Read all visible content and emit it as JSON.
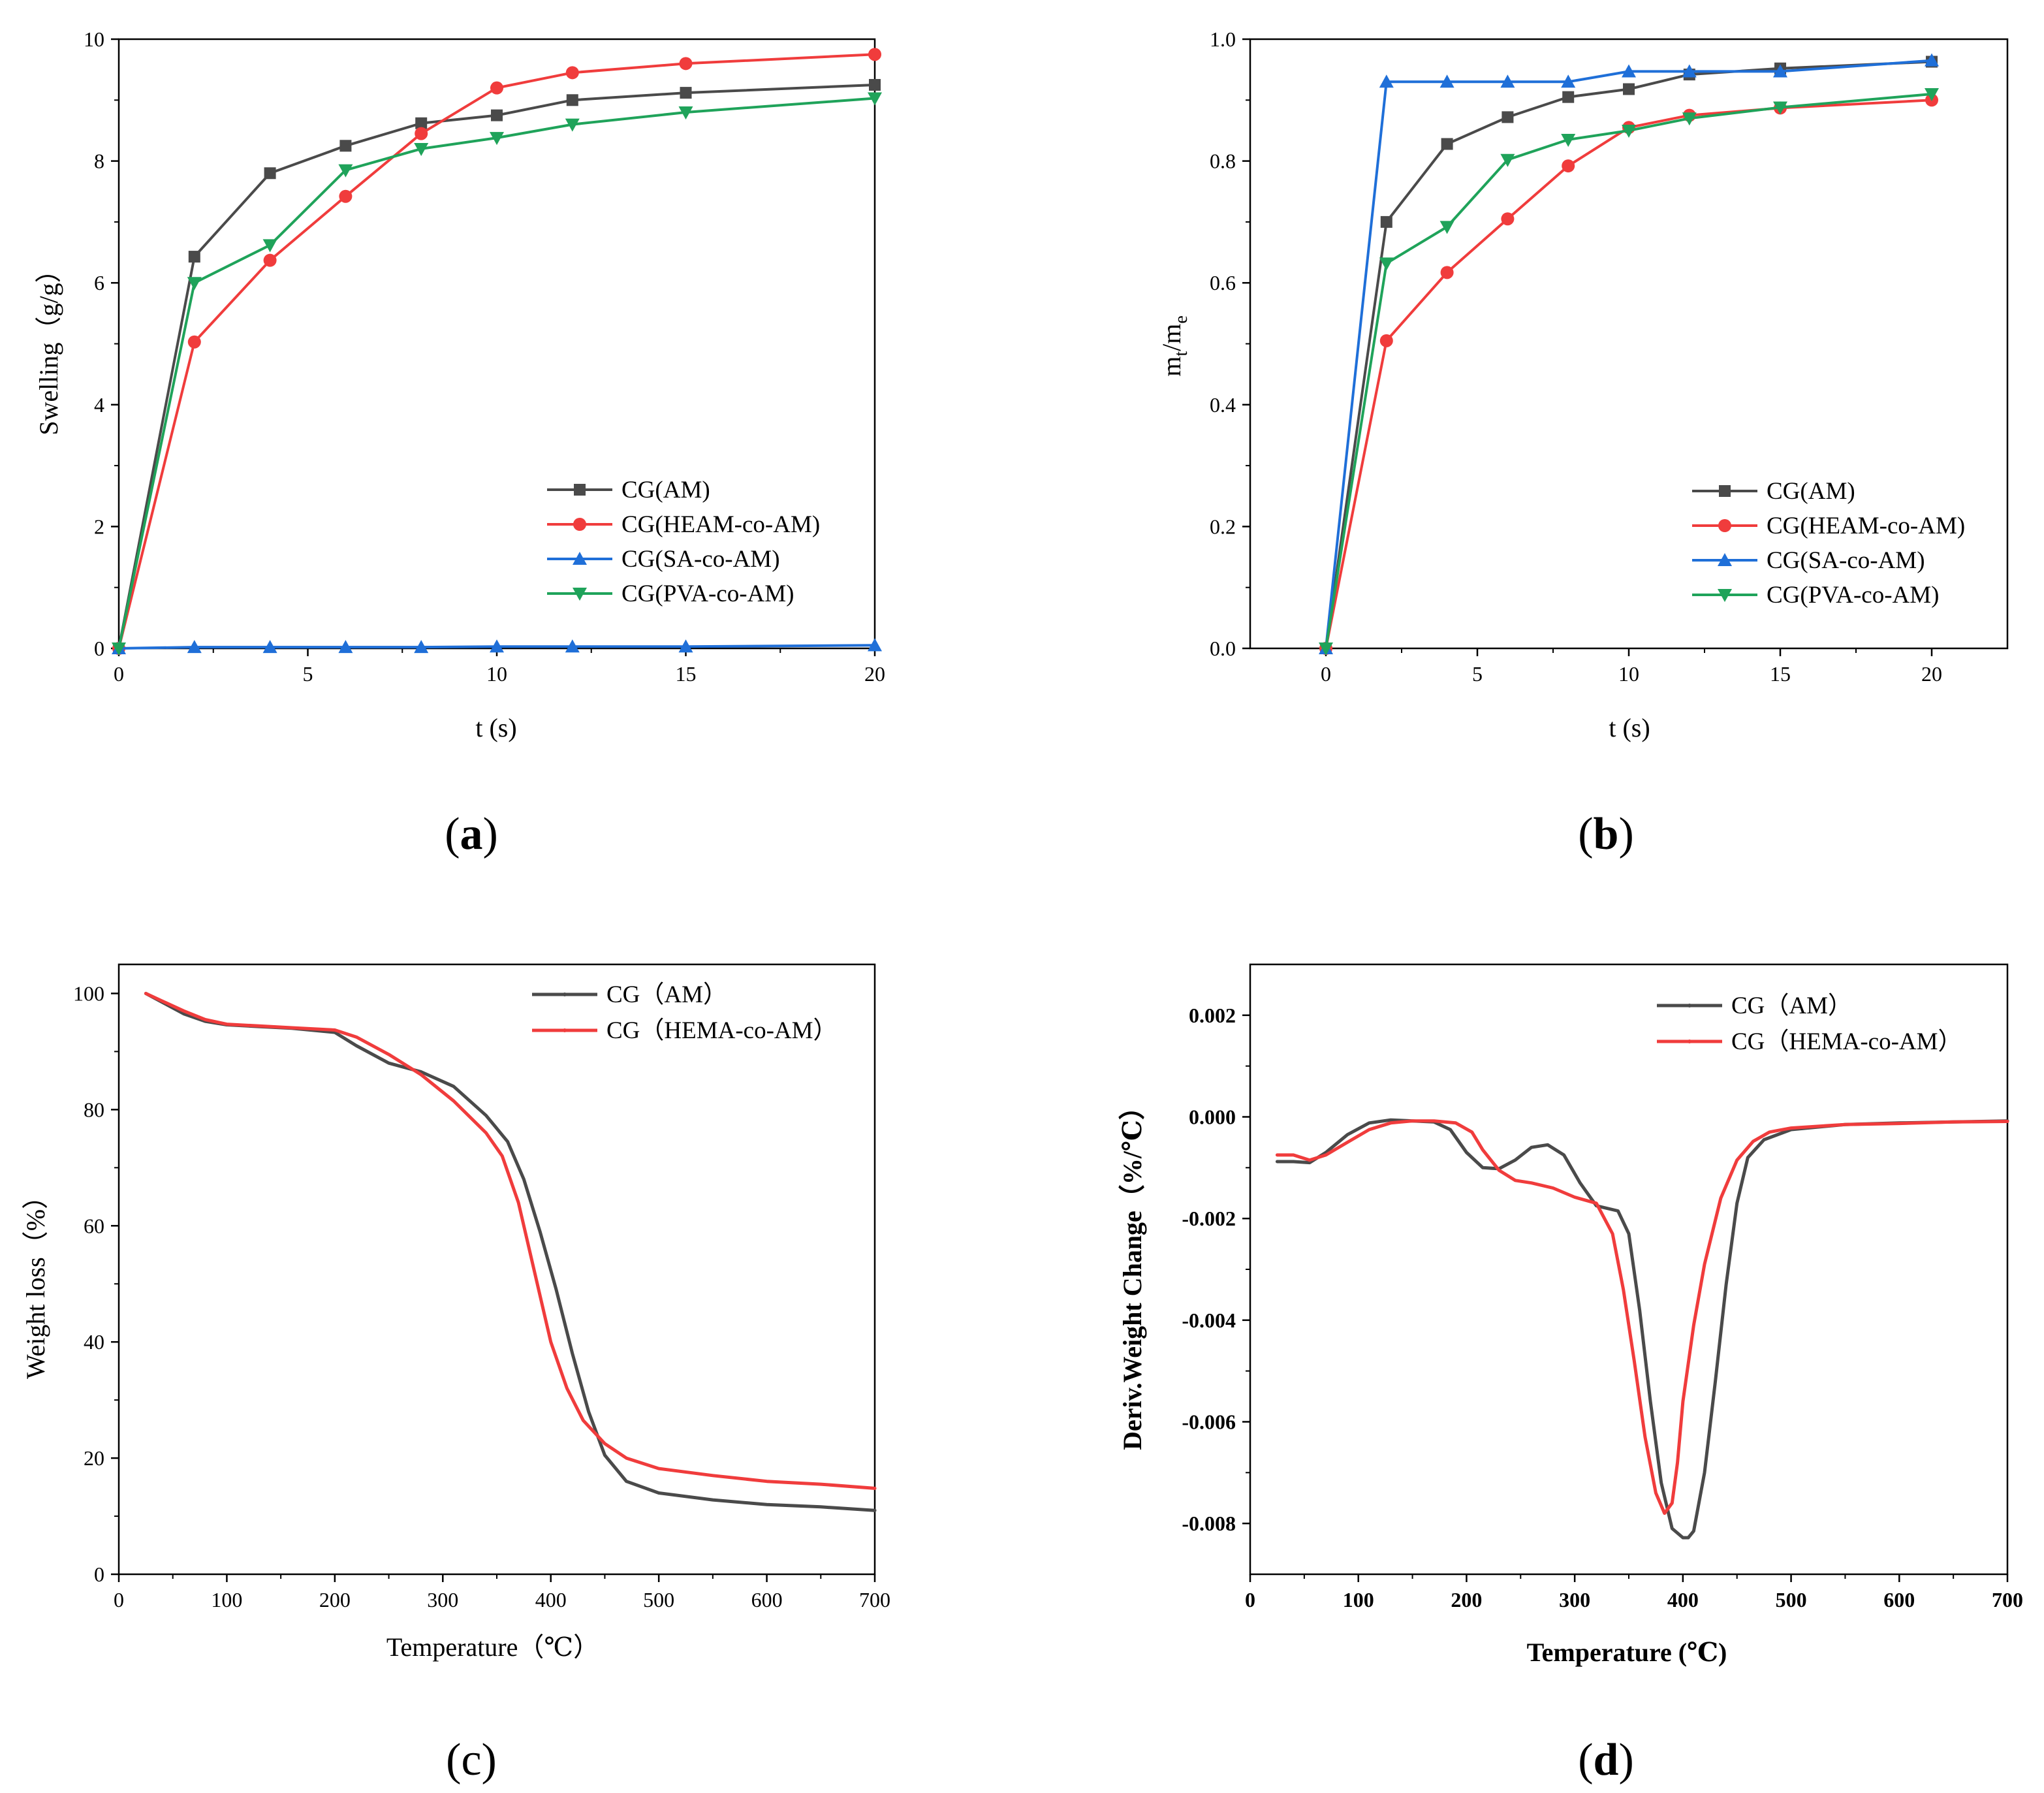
{
  "colors": {
    "gray": "#4a4a4a",
    "red": "#f03c3c",
    "blue": "#1f6fd8",
    "green": "#1fa35a"
  },
  "chart_data": [
    {
      "id": "a",
      "type": "line",
      "panel_label": "a",
      "xlabel": "t (s)",
      "ylabel": "Swelling（g/g）",
      "xlim": [
        0,
        20
      ],
      "ylim": [
        0,
        10
      ],
      "xticks": [
        0,
        5,
        10,
        15,
        20
      ],
      "yticks": [
        0,
        2,
        4,
        6,
        8,
        10
      ],
      "xtick_labels": [
        "0",
        "5",
        "10",
        "15",
        "20"
      ],
      "ytick_labels": [
        "0",
        "2",
        "4",
        "6",
        "8",
        "10"
      ],
      "legend_position": "lower-right",
      "series": [
        {
          "name": "CG(AM)",
          "color": "gray",
          "marker": "square",
          "x": [
            0,
            2,
            4,
            6,
            8,
            10,
            12,
            15,
            20
          ],
          "y": [
            0,
            6.43,
            7.8,
            8.25,
            8.62,
            8.75,
            9.0,
            9.12,
            9.25
          ]
        },
        {
          "name": "CG(HEAM-co-AM)",
          "color": "red",
          "marker": "circle",
          "x": [
            0,
            2,
            4,
            6,
            8,
            10,
            12,
            15,
            20
          ],
          "y": [
            0,
            5.03,
            6.37,
            7.42,
            8.45,
            9.2,
            9.45,
            9.6,
            9.75
          ]
        },
        {
          "name": "CG(SA-co-AM)",
          "color": "blue",
          "marker": "triangle-up",
          "x": [
            0,
            2,
            4,
            6,
            8,
            10,
            12,
            15,
            20
          ],
          "y": [
            0,
            0.02,
            0.02,
            0.02,
            0.02,
            0.03,
            0.03,
            0.03,
            0.05
          ]
        },
        {
          "name": "CG(PVA-co-AM)",
          "color": "green",
          "marker": "triangle-down",
          "x": [
            0,
            2,
            4,
            6,
            8,
            10,
            12,
            15,
            20
          ],
          "y": [
            0,
            6.0,
            6.62,
            7.85,
            8.2,
            8.38,
            8.6,
            8.8,
            9.03
          ]
        }
      ]
    },
    {
      "id": "b",
      "type": "line",
      "panel_label": "b",
      "xlabel": "t (s)",
      "ylabel_main": "m",
      "ylabel_sub1": "t",
      "ylabel_mid": "/m",
      "ylabel_sub2": "e",
      "xlim": [
        -2.5,
        22.5
      ],
      "ylim": [
        0,
        1.0
      ],
      "xticks": [
        0,
        5,
        10,
        15,
        20
      ],
      "yticks": [
        0.0,
        0.2,
        0.4,
        0.6,
        0.8,
        1.0
      ],
      "xtick_labels": [
        "0",
        "5",
        "10",
        "15",
        "20"
      ],
      "ytick_labels": [
        "0.0",
        "0.2",
        "0.4",
        "0.6",
        "0.8",
        "1.0"
      ],
      "legend_position": "lower-right",
      "series": [
        {
          "name": "CG(AM)",
          "color": "gray",
          "marker": "square",
          "x": [
            0,
            2,
            4,
            6,
            8,
            10,
            12,
            15,
            20
          ],
          "y": [
            0,
            0.7,
            0.828,
            0.872,
            0.905,
            0.918,
            0.942,
            0.952,
            0.963
          ]
        },
        {
          "name": "CG(HEAM-co-AM)",
          "color": "red",
          "marker": "circle",
          "x": [
            0,
            2,
            4,
            6,
            8,
            10,
            12,
            15,
            20
          ],
          "y": [
            0,
            0.505,
            0.617,
            0.705,
            0.792,
            0.855,
            0.875,
            0.887,
            0.9
          ]
        },
        {
          "name": "CG(SA-co-AM)",
          "color": "blue",
          "marker": "triangle-up",
          "x": [
            0,
            2,
            4,
            6,
            8,
            10,
            12,
            15,
            20
          ],
          "y": [
            0,
            0.93,
            0.93,
            0.93,
            0.93,
            0.947,
            0.947,
            0.947,
            0.965
          ]
        },
        {
          "name": "CG(PVA-co-AM)",
          "color": "green",
          "marker": "triangle-down",
          "x": [
            0,
            2,
            4,
            6,
            8,
            10,
            12,
            15,
            20
          ],
          "y": [
            0,
            0.632,
            0.692,
            0.802,
            0.835,
            0.85,
            0.87,
            0.888,
            0.91
          ]
        }
      ]
    },
    {
      "id": "c",
      "type": "line",
      "panel_label": "c",
      "xlabel": "Temperature（℃）",
      "ylabel": "Weight loss（%）",
      "xlim": [
        0,
        700
      ],
      "ylim": [
        0,
        105
      ],
      "xticks": [
        0,
        100,
        200,
        300,
        400,
        500,
        600,
        700
      ],
      "yticks": [
        0,
        20,
        40,
        60,
        80,
        100
      ],
      "xtick_labels": [
        "0",
        "100",
        "200",
        "300",
        "400",
        "500",
        "600",
        "700"
      ],
      "ytick_labels": [
        "0",
        "20",
        "40",
        "60",
        "80",
        "100"
      ],
      "legend_position": "top-right",
      "series": [
        {
          "name": "CG（AM）",
          "color": "gray",
          "x": [
            25,
            40,
            60,
            80,
            100,
            130,
            160,
            200,
            220,
            250,
            280,
            310,
            340,
            360,
            375,
            390,
            405,
            420,
            435,
            450,
            470,
            500,
            550,
            600,
            650,
            700
          ],
          "y": [
            100,
            98.5,
            96.5,
            95.2,
            94.6,
            94.3,
            94.0,
            93.3,
            91.0,
            88.0,
            86.5,
            84.0,
            79.0,
            74.5,
            68.0,
            59.0,
            49.0,
            38.0,
            28.0,
            20.5,
            16.0,
            14.0,
            12.8,
            12.0,
            11.6,
            11.0
          ]
        },
        {
          "name": "CG（HEMA-co-AM）",
          "color": "red",
          "x": [
            25,
            40,
            60,
            80,
            100,
            130,
            160,
            200,
            220,
            250,
            280,
            310,
            340,
            355,
            370,
            385,
            400,
            415,
            430,
            450,
            470,
            500,
            550,
            600,
            650,
            700
          ],
          "y": [
            100,
            98.7,
            97.0,
            95.5,
            94.7,
            94.4,
            94.1,
            93.7,
            92.5,
            89.5,
            86.0,
            81.5,
            76.0,
            72.0,
            64.0,
            52.0,
            40.0,
            32.0,
            26.5,
            22.5,
            20.0,
            18.2,
            17.0,
            16.0,
            15.5,
            14.8
          ]
        }
      ]
    },
    {
      "id": "d",
      "type": "line",
      "panel_label": "d",
      "xlabel": "Temperature (℃)",
      "ylabel": "Deriv.Weight Change（%/℃）",
      "xlim": [
        0,
        700
      ],
      "ylim": [
        -0.009,
        0.003
      ],
      "xticks": [
        0,
        100,
        200,
        300,
        400,
        500,
        600,
        700
      ],
      "yticks": [
        -0.008,
        -0.006,
        -0.004,
        -0.002,
        0.0,
        0.002
      ],
      "xtick_labels": [
        "0",
        "100",
        "200",
        "300",
        "400",
        "500",
        "600",
        "700"
      ],
      "ytick_labels": [
        "-0.008",
        "-0.006",
        "-0.004",
        "-0.002",
        "0.000",
        "0.002"
      ],
      "legend_position": "top-right",
      "series": [
        {
          "name": "CG（AM）",
          "color": "gray",
          "x": [
            25,
            40,
            55,
            70,
            90,
            110,
            130,
            150,
            170,
            185,
            200,
            215,
            230,
            245,
            260,
            275,
            290,
            305,
            320,
            340,
            350,
            360,
            370,
            380,
            390,
            400,
            405,
            410,
            420,
            430,
            440,
            450,
            460,
            475,
            500,
            550,
            600,
            650,
            700
          ],
          "y": [
            -0.00088,
            -0.00088,
            -0.0009,
            -0.0007,
            -0.00035,
            -0.00012,
            -6e-05,
            -8e-05,
            -0.0001,
            -0.00025,
            -0.0007,
            -0.001,
            -0.00102,
            -0.00085,
            -0.0006,
            -0.00055,
            -0.00075,
            -0.0013,
            -0.00175,
            -0.00185,
            -0.0023,
            -0.0038,
            -0.0056,
            -0.0072,
            -0.0081,
            -0.00828,
            -0.00828,
            -0.00815,
            -0.007,
            -0.0052,
            -0.0033,
            -0.0017,
            -0.0008,
            -0.00045,
            -0.00025,
            -0.00015,
            -0.00012,
            -0.0001,
            -8e-05
          ]
        },
        {
          "name": "CG（HEMA-co-AM）",
          "color": "red",
          "x": [
            25,
            40,
            55,
            70,
            90,
            110,
            130,
            150,
            170,
            190,
            205,
            215,
            230,
            245,
            260,
            280,
            300,
            320,
            335,
            345,
            355,
            365,
            375,
            383,
            390,
            395,
            400,
            410,
            420,
            435,
            450,
            465,
            480,
            500,
            550,
            600,
            650,
            700
          ],
          "y": [
            -0.00075,
            -0.00075,
            -0.00085,
            -0.00075,
            -0.0005,
            -0.00025,
            -0.00012,
            -8e-05,
            -8e-05,
            -0.00012,
            -0.0003,
            -0.00065,
            -0.00105,
            -0.00125,
            -0.0013,
            -0.0014,
            -0.00158,
            -0.0017,
            -0.0023,
            -0.0034,
            -0.0048,
            -0.0063,
            -0.0074,
            -0.0078,
            -0.0076,
            -0.0068,
            -0.0056,
            -0.0041,
            -0.0029,
            -0.0016,
            -0.00085,
            -0.00048,
            -0.0003,
            -0.00022,
            -0.00015,
            -0.00013,
            -0.0001,
            -9e-05
          ]
        }
      ]
    }
  ]
}
